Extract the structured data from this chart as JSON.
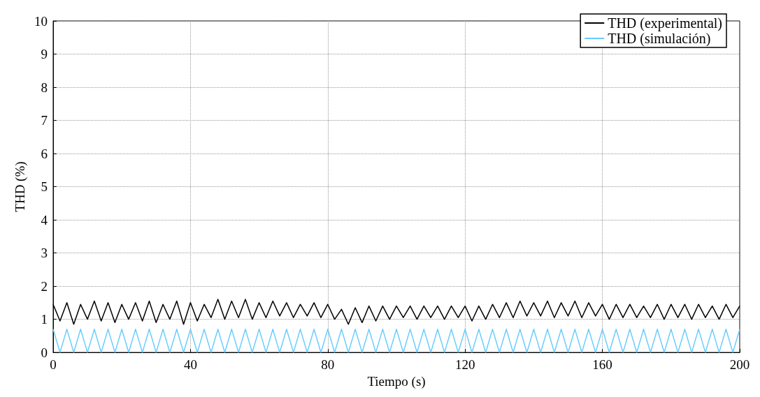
{
  "chart_data": {
    "type": "line",
    "xlabel": "Tiempo (s)",
    "ylabel": "THD (%)",
    "xlim": [
      0,
      200
    ],
    "xticks": [
      0,
      40,
      80,
      120,
      160,
      200
    ],
    "ylim": [
      0,
      10
    ],
    "yticks": [
      0,
      1,
      2,
      3,
      4,
      5,
      6,
      7,
      8,
      9,
      10
    ],
    "grid": true,
    "legend": "top right",
    "line_style": "solid",
    "x": [
      0,
      2,
      4,
      6,
      8,
      10,
      12,
      14,
      16,
      18,
      20,
      22,
      24,
      26,
      28,
      30,
      32,
      34,
      36,
      38,
      40,
      42,
      44,
      46,
      48,
      50,
      52,
      54,
      56,
      58,
      60,
      62,
      64,
      66,
      68,
      70,
      72,
      74,
      76,
      78,
      80,
      82,
      84,
      86,
      88,
      90,
      92,
      94,
      96,
      98,
      100,
      102,
      104,
      106,
      108,
      110,
      112,
      114,
      116,
      118,
      120,
      122,
      124,
      126,
      128,
      130,
      132,
      134,
      136,
      138,
      140,
      142,
      144,
      146,
      148,
      150,
      152,
      154,
      156,
      158,
      160,
      162,
      164,
      166,
      168,
      170,
      172,
      174,
      176,
      178,
      180,
      182,
      184,
      186,
      188,
      190,
      192,
      194,
      196,
      198,
      200
    ],
    "series": [
      {
        "name": "THD (experimental)",
        "color": "#000000",
        "values": [
          1.45,
          0.95,
          1.5,
          0.85,
          1.45,
          1.0,
          1.55,
          0.95,
          1.5,
          0.9,
          1.45,
          1.0,
          1.5,
          0.95,
          1.55,
          0.9,
          1.45,
          1.0,
          1.55,
          0.85,
          1.5,
          0.95,
          1.45,
          1.05,
          1.6,
          1.0,
          1.55,
          1.05,
          1.6,
          1.0,
          1.5,
          1.05,
          1.55,
          1.1,
          1.5,
          1.05,
          1.45,
          1.1,
          1.5,
          1.05,
          1.45,
          1.0,
          1.3,
          0.85,
          1.35,
          0.9,
          1.4,
          0.95,
          1.4,
          1.0,
          1.4,
          1.05,
          1.4,
          1.0,
          1.4,
          1.05,
          1.4,
          1.0,
          1.4,
          1.05,
          1.4,
          0.95,
          1.4,
          1.0,
          1.45,
          1.05,
          1.5,
          1.05,
          1.55,
          1.1,
          1.5,
          1.1,
          1.55,
          1.05,
          1.5,
          1.1,
          1.55,
          1.05,
          1.5,
          1.1,
          1.45,
          1.0,
          1.45,
          1.05,
          1.45,
          1.05,
          1.4,
          1.05,
          1.45,
          1.0,
          1.45,
          1.05,
          1.45,
          1.0,
          1.45,
          1.05,
          1.4,
          1.0,
          1.45,
          1.05,
          1.4
        ]
      },
      {
        "name": "THD (simulación)",
        "color": "#66ccff",
        "values": [
          0.7,
          0,
          0.7,
          0,
          0.7,
          0,
          0.7,
          0,
          0.7,
          0,
          0.7,
          0,
          0.7,
          0,
          0.7,
          0,
          0.7,
          0,
          0.7,
          0,
          0.7,
          0,
          0.7,
          0,
          0.7,
          0,
          0.7,
          0,
          0.7,
          0,
          0.7,
          0,
          0.7,
          0,
          0.7,
          0,
          0.7,
          0,
          0.7,
          0,
          0.7,
          0,
          0.7,
          0,
          0.7,
          0,
          0.7,
          0,
          0.7,
          0,
          0.7,
          0,
          0.7,
          0,
          0.7,
          0,
          0.7,
          0,
          0.7,
          0,
          0.7,
          0,
          0.7,
          0,
          0.7,
          0,
          0.7,
          0,
          0.7,
          0,
          0.7,
          0,
          0.7,
          0,
          0.7,
          0,
          0.7,
          0,
          0.7,
          0,
          0.7,
          0,
          0.7,
          0,
          0.7,
          0,
          0.7,
          0,
          0.7,
          0,
          0.7,
          0,
          0.7,
          0,
          0.7,
          0,
          0.7,
          0,
          0.7,
          0,
          0.7
        ]
      }
    ]
  }
}
